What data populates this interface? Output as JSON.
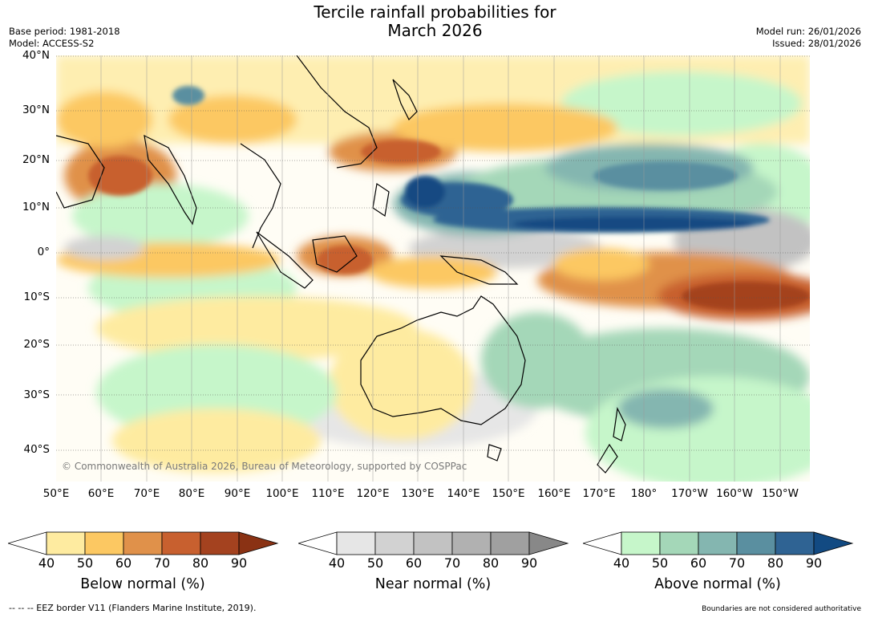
{
  "title_line1": "Tercile rainfall probabilities for",
  "title_line2": "March 2026",
  "meta_left": [
    "Base period: 1981-2018",
    "Model: ACCESS-S2"
  ],
  "meta_right": [
    "Model run: 26/01/2026",
    "Issued: 28/01/2026"
  ],
  "lat_labels": [
    "40°N",
    "30°N",
    "20°N",
    "10°N",
    "0°",
    "10°S",
    "20°S",
    "30°S",
    "40°S"
  ],
  "lon_labels": [
    "50°E",
    "60°E",
    "70°E",
    "80°E",
    "90°E",
    "100°E",
    "110°E",
    "120°E",
    "130°E",
    "140°E",
    "150°E",
    "160°E",
    "170°E",
    "180°",
    "170°W",
    "160°W",
    "150°W"
  ],
  "copyright": "© Commonwealth of Australia 2026, Bureau of Meteorology, supported by COSPPac",
  "colorbars": [
    {
      "label": "Below normal (%)",
      "ticks": [
        "40",
        "50",
        "60",
        "70",
        "80",
        "90"
      ],
      "colors": [
        "#ffffff",
        "#feeba0",
        "#fcc862",
        "#e0914a",
        "#c8602f",
        "#a4421f",
        "#8a3214"
      ]
    },
    {
      "label": "Near normal (%)",
      "ticks": [
        "40",
        "50",
        "60",
        "70",
        "80",
        "90"
      ],
      "colors": [
        "#ffffff",
        "#e6e6e6",
        "#d2d2d2",
        "#c2c2c2",
        "#b1b1b1",
        "#a0a0a0",
        "#888888"
      ]
    },
    {
      "label": "Above normal (%)",
      "ticks": [
        "40",
        "50",
        "60",
        "70",
        "80",
        "90"
      ],
      "colors": [
        "#ffffff",
        "#c6f6ca",
        "#a4d7b8",
        "#84b6b0",
        "#5a8fa0",
        "#2f6393",
        "#124a82"
      ]
    }
  ],
  "footer_left": "--  --  -- EEZ border V11 (Flanders Marine Institute, 2019).",
  "footer_right": "Boundaries are not considered authoritative"
}
